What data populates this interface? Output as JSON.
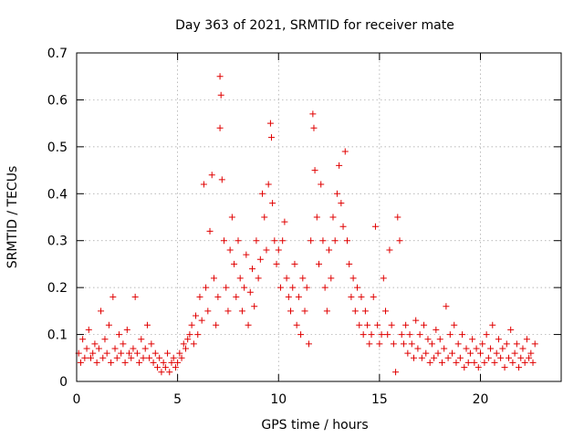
{
  "chart_data": {
    "type": "scatter",
    "title": "Day 363 of 2021, SRMTID for receiver mate",
    "xlabel": "GPS time / hours",
    "ylabel": "SRMTID / TECUs",
    "xlim": [
      0,
      24
    ],
    "ylim": [
      0,
      0.7
    ],
    "xticks": [
      0,
      5,
      10,
      15,
      20
    ],
    "xtick_labels": [
      "0",
      "5",
      "10",
      "15",
      "20"
    ],
    "yticks": [
      0,
      0.1,
      0.2,
      0.3,
      0.4,
      0.5,
      0.6,
      0.7
    ],
    "ytick_labels": [
      "0",
      "0.1",
      "0.2",
      "0.3",
      "0.4",
      "0.5",
      "0.6",
      "0.7"
    ],
    "grid": true,
    "marker": "plus",
    "color": "#e00000",
    "series": [
      {
        "name": "SRMTID",
        "points": [
          [
            0.1,
            0.06
          ],
          [
            0.2,
            0.04
          ],
          [
            0.3,
            0.09
          ],
          [
            0.4,
            0.05
          ],
          [
            0.5,
            0.07
          ],
          [
            0.6,
            0.11
          ],
          [
            0.7,
            0.05
          ],
          [
            0.8,
            0.06
          ],
          [
            0.9,
            0.08
          ],
          [
            1.0,
            0.04
          ],
          [
            1.1,
            0.07
          ],
          [
            1.2,
            0.15
          ],
          [
            1.3,
            0.05
          ],
          [
            1.4,
            0.09
          ],
          [
            1.5,
            0.06
          ],
          [
            1.6,
            0.12
          ],
          [
            1.7,
            0.04
          ],
          [
            1.8,
            0.18
          ],
          [
            1.9,
            0.07
          ],
          [
            2.0,
            0.05
          ],
          [
            2.1,
            0.1
          ],
          [
            2.2,
            0.06
          ],
          [
            2.3,
            0.08
          ],
          [
            2.4,
            0.04
          ],
          [
            2.5,
            0.11
          ],
          [
            2.6,
            0.06
          ],
          [
            2.7,
            0.05
          ],
          [
            2.8,
            0.07
          ],
          [
            2.9,
            0.18
          ],
          [
            3.0,
            0.06
          ],
          [
            3.1,
            0.04
          ],
          [
            3.2,
            0.09
          ],
          [
            3.3,
            0.05
          ],
          [
            3.4,
            0.07
          ],
          [
            3.5,
            0.12
          ],
          [
            3.6,
            0.05
          ],
          [
            3.7,
            0.08
          ],
          [
            3.8,
            0.04
          ],
          [
            3.9,
            0.06
          ],
          [
            4.0,
            0.03
          ],
          [
            4.1,
            0.05
          ],
          [
            4.2,
            0.02
          ],
          [
            4.3,
            0.04
          ],
          [
            4.4,
            0.03
          ],
          [
            4.5,
            0.06
          ],
          [
            4.6,
            0.02
          ],
          [
            4.7,
            0.04
          ],
          [
            4.8,
            0.05
          ],
          [
            4.9,
            0.03
          ],
          [
            5.0,
            0.04
          ],
          [
            5.1,
            0.06
          ],
          [
            5.2,
            0.05
          ],
          [
            5.3,
            0.08
          ],
          [
            5.4,
            0.07
          ],
          [
            5.5,
            0.09
          ],
          [
            5.6,
            0.1
          ],
          [
            5.7,
            0.12
          ],
          [
            5.8,
            0.08
          ],
          [
            5.9,
            0.14
          ],
          [
            6.0,
            0.1
          ],
          [
            6.1,
            0.18
          ],
          [
            6.2,
            0.13
          ],
          [
            6.3,
            0.42
          ],
          [
            6.4,
            0.2
          ],
          [
            6.5,
            0.15
          ],
          [
            6.6,
            0.32
          ],
          [
            6.7,
            0.44
          ],
          [
            6.8,
            0.22
          ],
          [
            6.9,
            0.12
          ],
          [
            7.0,
            0.18
          ],
          [
            7.1,
            0.65
          ],
          [
            7.15,
            0.61
          ],
          [
            7.1,
            0.54
          ],
          [
            7.2,
            0.43
          ],
          [
            7.3,
            0.3
          ],
          [
            7.4,
            0.2
          ],
          [
            7.5,
            0.15
          ],
          [
            7.6,
            0.28
          ],
          [
            7.7,
            0.35
          ],
          [
            7.8,
            0.25
          ],
          [
            7.9,
            0.18
          ],
          [
            8.0,
            0.3
          ],
          [
            8.1,
            0.22
          ],
          [
            8.2,
            0.15
          ],
          [
            8.3,
            0.2
          ],
          [
            8.4,
            0.27
          ],
          [
            8.5,
            0.12
          ],
          [
            8.6,
            0.19
          ],
          [
            8.7,
            0.24
          ],
          [
            8.8,
            0.16
          ],
          [
            8.9,
            0.3
          ],
          [
            9.0,
            0.22
          ],
          [
            9.1,
            0.26
          ],
          [
            9.2,
            0.4
          ],
          [
            9.3,
            0.35
          ],
          [
            9.4,
            0.28
          ],
          [
            9.5,
            0.42
          ],
          [
            9.6,
            0.55
          ],
          [
            9.65,
            0.52
          ],
          [
            9.7,
            0.38
          ],
          [
            9.8,
            0.3
          ],
          [
            9.9,
            0.25
          ],
          [
            10.0,
            0.28
          ],
          [
            10.1,
            0.2
          ],
          [
            10.2,
            0.3
          ],
          [
            10.3,
            0.34
          ],
          [
            10.4,
            0.22
          ],
          [
            10.5,
            0.18
          ],
          [
            10.6,
            0.15
          ],
          [
            10.7,
            0.2
          ],
          [
            10.8,
            0.25
          ],
          [
            10.9,
            0.12
          ],
          [
            11.0,
            0.18
          ],
          [
            11.1,
            0.1
          ],
          [
            11.2,
            0.22
          ],
          [
            11.3,
            0.15
          ],
          [
            11.4,
            0.2
          ],
          [
            11.5,
            0.08
          ],
          [
            11.6,
            0.3
          ],
          [
            11.7,
            0.57
          ],
          [
            11.75,
            0.54
          ],
          [
            11.8,
            0.45
          ],
          [
            11.9,
            0.35
          ],
          [
            12.0,
            0.25
          ],
          [
            12.1,
            0.42
          ],
          [
            12.2,
            0.3
          ],
          [
            12.3,
            0.2
          ],
          [
            12.4,
            0.15
          ],
          [
            12.5,
            0.28
          ],
          [
            12.6,
            0.22
          ],
          [
            12.7,
            0.35
          ],
          [
            12.8,
            0.3
          ],
          [
            12.9,
            0.4
          ],
          [
            13.0,
            0.46
          ],
          [
            13.1,
            0.38
          ],
          [
            13.2,
            0.33
          ],
          [
            13.3,
            0.49
          ],
          [
            13.4,
            0.3
          ],
          [
            13.5,
            0.25
          ],
          [
            13.6,
            0.18
          ],
          [
            13.7,
            0.22
          ],
          [
            13.8,
            0.15
          ],
          [
            13.9,
            0.2
          ],
          [
            14.0,
            0.12
          ],
          [
            14.1,
            0.18
          ],
          [
            14.2,
            0.1
          ],
          [
            14.3,
            0.15
          ],
          [
            14.4,
            0.12
          ],
          [
            14.5,
            0.08
          ],
          [
            14.6,
            0.1
          ],
          [
            14.7,
            0.18
          ],
          [
            14.8,
            0.33
          ],
          [
            14.9,
            0.12
          ],
          [
            15.0,
            0.08
          ],
          [
            15.1,
            0.1
          ],
          [
            15.2,
            0.22
          ],
          [
            15.3,
            0.15
          ],
          [
            15.4,
            0.1
          ],
          [
            15.5,
            0.28
          ],
          [
            15.6,
            0.12
          ],
          [
            15.7,
            0.08
          ],
          [
            15.8,
            0.02
          ],
          [
            15.9,
            0.35
          ],
          [
            16.0,
            0.3
          ],
          [
            16.1,
            0.1
          ],
          [
            16.2,
            0.08
          ],
          [
            16.3,
            0.12
          ],
          [
            16.4,
            0.06
          ],
          [
            16.5,
            0.1
          ],
          [
            16.6,
            0.08
          ],
          [
            16.7,
            0.05
          ],
          [
            16.8,
            0.13
          ],
          [
            16.9,
            0.07
          ],
          [
            17.0,
            0.1
          ],
          [
            17.1,
            0.05
          ],
          [
            17.2,
            0.12
          ],
          [
            17.3,
            0.06
          ],
          [
            17.4,
            0.09
          ],
          [
            17.5,
            0.04
          ],
          [
            17.6,
            0.08
          ],
          [
            17.7,
            0.05
          ],
          [
            17.8,
            0.11
          ],
          [
            17.9,
            0.06
          ],
          [
            18.0,
            0.09
          ],
          [
            18.1,
            0.04
          ],
          [
            18.2,
            0.07
          ],
          [
            18.3,
            0.16
          ],
          [
            18.4,
            0.05
          ],
          [
            18.5,
            0.1
          ],
          [
            18.6,
            0.06
          ],
          [
            18.7,
            0.12
          ],
          [
            18.8,
            0.04
          ],
          [
            18.9,
            0.08
          ],
          [
            19.0,
            0.05
          ],
          [
            19.1,
            0.1
          ],
          [
            19.2,
            0.03
          ],
          [
            19.3,
            0.07
          ],
          [
            19.4,
            0.04
          ],
          [
            19.5,
            0.06
          ],
          [
            19.6,
            0.09
          ],
          [
            19.7,
            0.04
          ],
          [
            19.8,
            0.07
          ],
          [
            19.9,
            0.03
          ],
          [
            20.0,
            0.06
          ],
          [
            20.1,
            0.08
          ],
          [
            20.2,
            0.04
          ],
          [
            20.3,
            0.1
          ],
          [
            20.4,
            0.05
          ],
          [
            20.5,
            0.07
          ],
          [
            20.6,
            0.12
          ],
          [
            20.7,
            0.04
          ],
          [
            20.8,
            0.06
          ],
          [
            20.9,
            0.09
          ],
          [
            21.0,
            0.05
          ],
          [
            21.1,
            0.07
          ],
          [
            21.2,
            0.03
          ],
          [
            21.3,
            0.08
          ],
          [
            21.4,
            0.05
          ],
          [
            21.5,
            0.11
          ],
          [
            21.6,
            0.04
          ],
          [
            21.7,
            0.06
          ],
          [
            21.8,
            0.08
          ],
          [
            21.9,
            0.03
          ],
          [
            22.0,
            0.05
          ],
          [
            22.1,
            0.07
          ],
          [
            22.2,
            0.04
          ],
          [
            22.3,
            0.09
          ],
          [
            22.4,
            0.05
          ],
          [
            22.5,
            0.06
          ],
          [
            22.6,
            0.04
          ],
          [
            22.7,
            0.08
          ]
        ]
      }
    ]
  }
}
